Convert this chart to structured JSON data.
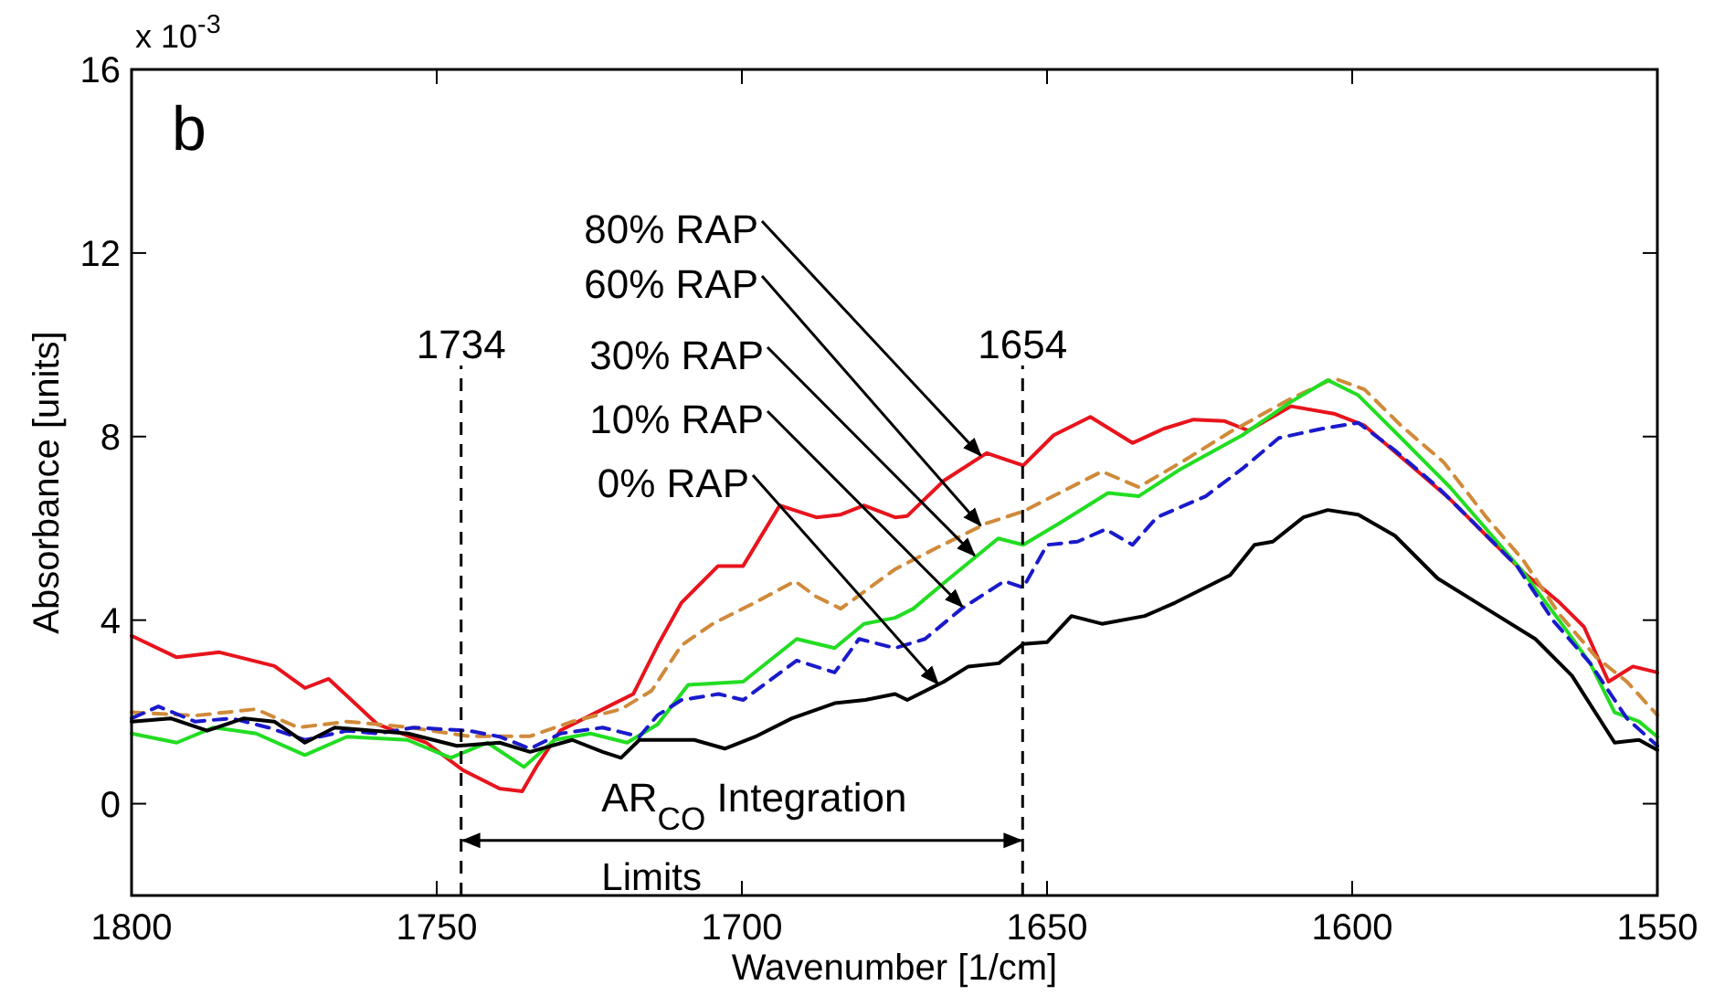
{
  "chart_data": {
    "type": "line",
    "xlabel": "Wavenumber [1/cm]",
    "ylabel": "Absorbance [units]",
    "xlim": [
      1800,
      1550
    ],
    "xticks": [
      1800,
      1750,
      1700,
      1650,
      1600,
      1550
    ],
    "ylim": [
      -2,
      16
    ],
    "yticks": [
      0,
      4,
      8,
      12,
      16
    ],
    "grid": false,
    "legend": false,
    "marker": "none",
    "annotations": [
      "b",
      "x 10$^{-3}$",
      "AR$_{CO}$ Integration",
      "Limits",
      "1734"
    ],
    "ref_lines": [
      {
        "axis": "x",
        "value": 1746,
        "color": "#000000",
        "line_style": "dashed"
      },
      {
        "axis": "x",
        "value": 1654,
        "label": "1654",
        "color": "#000000",
        "line_style": "dashed"
      }
    ],
    "series": [
      {
        "name": "80% RAP",
        "color": "#e8141c",
        "line_style": "solid",
        "x": [
          1800,
          1792.6,
          1785.6,
          1776.6,
          1771.6,
          1767.7,
          1759.7,
          1751.7,
          1745.7,
          1739.7,
          1736,
          1733.7,
          1729.7,
          1723.7,
          1717.8,
          1713.8,
          1709.9,
          1703.9,
          1699.8,
          1693.8,
          1687.8,
          1683.8,
          1680,
          1674.9,
          1672.9,
          1666.9,
          1659.9,
          1653.9,
          1648.9,
          1642.9,
          1636,
          1630.9,
          1626,
          1621,
          1617,
          1610,
          1603,
          1598,
          1591,
          1584,
          1578,
          1572,
          1566,
          1562,
          1558,
          1554,
          1550
        ],
        "values": [
          3.66,
          3.19,
          3.3,
          3.0,
          2.52,
          2.72,
          1.73,
          1.33,
          0.73,
          0.33,
          0.27,
          0.8,
          1.6,
          2.0,
          2.39,
          3.45,
          4.38,
          5.18,
          5.18,
          6.5,
          6.24,
          6.3,
          6.5,
          6.24,
          6.27,
          7.04,
          7.64,
          7.37,
          8.03,
          8.43,
          7.86,
          8.17,
          8.37,
          8.34,
          8.13,
          8.66,
          8.5,
          8.24,
          7.44,
          6.64,
          5.84,
          5.05,
          4.38,
          3.85,
          2.66,
          2.99,
          2.86
        ]
      },
      {
        "name": "60% RAP",
        "color": "#d08a3a",
        "line_style": "dashed",
        "x": [
          1800,
          1789.6,
          1779.6,
          1772.7,
          1764.7,
          1754.8,
          1744.7,
          1734.7,
          1727.8,
          1719.8,
          1714.8,
          1709.9,
          1704.8,
          1697.9,
          1691.3,
          1687.8,
          1683.8,
          1674.9,
          1668,
          1659.9,
          1653.9,
          1648,
          1641,
          1635,
          1628,
          1620,
          1610,
          1603,
          1598,
          1592,
          1585,
          1578,
          1572,
          1566,
          1560,
          1555,
          1550
        ],
        "values": [
          1.99,
          1.92,
          2.06,
          1.66,
          1.79,
          1.67,
          1.47,
          1.47,
          1.79,
          2.06,
          2.46,
          3.45,
          3.92,
          4.38,
          4.85,
          4.51,
          4.25,
          5.11,
          5.58,
          6.11,
          6.37,
          6.77,
          7.24,
          6.9,
          7.44,
          8.1,
          8.83,
          9.27,
          9.03,
          8.24,
          7.44,
          6.24,
          5.31,
          4.12,
          3.19,
          2.66,
          1.93
        ]
      },
      {
        "name": "30% RAP",
        "color": "#22dd22",
        "line_style": "solid",
        "x": [
          1800,
          1792.6,
          1786.6,
          1779.6,
          1771.6,
          1764.7,
          1754.8,
          1747.7,
          1741.7,
          1735.7,
          1730.7,
          1724.8,
          1718.8,
          1713.8,
          1708.8,
          1699.8,
          1691,
          1684.8,
          1680,
          1674.9,
          1671.9,
          1666,
          1658,
          1653.9,
          1648,
          1640,
          1635,
          1628,
          1618,
          1610,
          1604,
          1599,
          1592,
          1584,
          1578,
          1572,
          1566,
          1561,
          1557,
          1553,
          1550
        ],
        "values": [
          1.53,
          1.33,
          1.66,
          1.53,
          1.06,
          1.46,
          1.39,
          1.0,
          1.33,
          0.8,
          1.39,
          1.53,
          1.33,
          1.73,
          2.59,
          2.66,
          3.59,
          3.39,
          3.92,
          4.05,
          4.25,
          4.91,
          5.78,
          5.64,
          6.11,
          6.77,
          6.7,
          7.3,
          8.03,
          8.76,
          9.23,
          8.9,
          7.97,
          6.9,
          5.98,
          5.05,
          3.98,
          3.06,
          1.99,
          1.79,
          1.46
        ]
      },
      {
        "name": "10% RAP",
        "color": "#1a1acc",
        "line_style": "dashed",
        "x": [
          1800,
          1795.6,
          1789.6,
          1783.6,
          1777.6,
          1771.6,
          1764.7,
          1759.7,
          1753.7,
          1744.7,
          1739.7,
          1734.7,
          1729.7,
          1722.8,
          1716.8,
          1713.8,
          1709.9,
          1703.8,
          1699.8,
          1691,
          1684.8,
          1680.8,
          1674.9,
          1670,
          1664,
          1657,
          1653.9,
          1650,
          1645,
          1640.4,
          1636,
          1632,
          1624,
          1618,
          1612,
          1605,
          1599,
          1593,
          1586,
          1580,
          1573,
          1567,
          1561,
          1555,
          1550
        ],
        "values": [
          1.86,
          2.12,
          1.79,
          1.86,
          1.66,
          1.39,
          1.59,
          1.53,
          1.66,
          1.59,
          1.46,
          1.2,
          1.53,
          1.66,
          1.46,
          1.93,
          2.26,
          2.39,
          2.26,
          3.12,
          2.86,
          3.59,
          3.39,
          3.59,
          4.25,
          4.85,
          4.71,
          5.64,
          5.71,
          5.98,
          5.64,
          6.24,
          6.7,
          7.3,
          7.97,
          8.17,
          8.3,
          7.7,
          6.9,
          6.11,
          5.18,
          3.98,
          3.06,
          1.86,
          1.26
        ]
      },
      {
        "name": "0% RAP",
        "color": "#000000",
        "line_style": "solid",
        "x": [
          1800,
          1793.6,
          1787.6,
          1781.6,
          1776.6,
          1771.6,
          1766.7,
          1754.7,
          1746.7,
          1739.7,
          1734.7,
          1727.8,
          1722.8,
          1719.8,
          1716.8,
          1707.8,
          1702.8,
          1697.8,
          1691.8,
          1684.8,
          1679.8,
          1674.9,
          1672.9,
          1666.9,
          1662.9,
          1657.9,
          1653.9,
          1650,
          1646,
          1641,
          1634,
          1629,
          1620,
          1616,
          1613,
          1608,
          1604,
          1599,
          1593,
          1586,
          1578,
          1570,
          1564,
          1557,
          1553,
          1550
        ],
        "values": [
          1.79,
          1.86,
          1.59,
          1.86,
          1.79,
          1.33,
          1.66,
          1.53,
          1.26,
          1.33,
          1.13,
          1.39,
          1.13,
          1.0,
          1.39,
          1.39,
          1.2,
          1.46,
          1.86,
          2.19,
          2.26,
          2.39,
          2.26,
          2.66,
          2.99,
          3.06,
          3.48,
          3.52,
          4.09,
          3.92,
          4.09,
          4.38,
          4.98,
          5.64,
          5.71,
          6.24,
          6.4,
          6.3,
          5.84,
          4.91,
          4.25,
          3.59,
          2.79,
          1.33,
          1.39,
          1.17
        ]
      }
    ]
  }
}
